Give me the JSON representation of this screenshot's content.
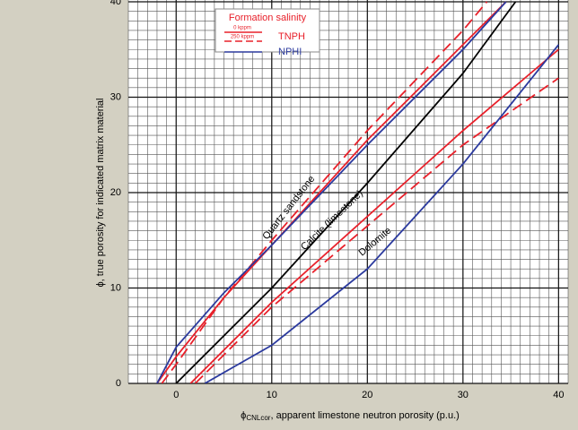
{
  "chart_data": {
    "type": "line",
    "xlabel": {
      "symbol": "ϕ",
      "subscript": "CNLcor",
      "text": ", apparent limestone neutron porosity (p.u.)"
    },
    "ylabel": "ϕ, true porosity for indicated matrix material",
    "xlim": [
      -5,
      41
    ],
    "ylim": [
      0,
      40
    ],
    "xticks": [
      0,
      10,
      20,
      30,
      40
    ],
    "yticks": [
      0,
      10,
      20,
      30,
      40
    ],
    "grid": true,
    "minor_grid_step": 1,
    "curve_labels": [
      "Quartz sandstone",
      "Calcite (limestone)",
      "Dolomite"
    ],
    "legend": {
      "title": "Formation salinity",
      "groups": [
        {
          "name": "TNPH",
          "color": "#e8202a",
          "entries": [
            {
              "label": "0 kppm",
              "style": "solid"
            },
            {
              "label": "250 kppm",
              "style": "dashed"
            }
          ]
        },
        {
          "name": "NPHI",
          "color": "#2b3a9e",
          "entries": [
            {
              "style": "solid"
            }
          ]
        }
      ]
    },
    "series": [
      {
        "color": "#e8202a",
        "style": "solid",
        "x": [
          -2,
          0,
          5,
          10,
          20,
          30,
          34.5
        ],
        "values": [
          0,
          2.8,
          9,
          14.5,
          25.5,
          35.5,
          40
        ]
      },
      {
        "color": "#e8202a",
        "style": "dashed",
        "x": [
          -1.5,
          0,
          5,
          10,
          20,
          30,
          32.5
        ],
        "values": [
          0,
          2,
          9,
          15,
          26.5,
          37,
          40
        ]
      },
      {
        "color": "#2b3a9e",
        "style": "solid",
        "x": [
          -2,
          0,
          5,
          10,
          20,
          30,
          34.5
        ],
        "values": [
          0,
          3.8,
          9.5,
          14.5,
          25,
          35,
          40
        ]
      },
      {
        "color": "#000000",
        "style": "solid",
        "x": [
          0,
          10,
          20,
          30,
          35.5
        ],
        "values": [
          0,
          10,
          21,
          32.5,
          40
        ]
      },
      {
        "color": "#e8202a",
        "style": "solid",
        "x": [
          1.5,
          10,
          20,
          30,
          40
        ],
        "values": [
          0,
          8.5,
          17.5,
          26.5,
          35
        ]
      },
      {
        "color": "#e8202a",
        "style": "dashed",
        "x": [
          2,
          10,
          20,
          30,
          40
        ],
        "values": [
          0,
          8,
          16.5,
          25,
          32
        ]
      },
      {
        "color": "#2b3a9e",
        "style": "solid",
        "x": [
          3,
          10,
          20,
          30,
          40
        ],
        "values": [
          0,
          4,
          12,
          23,
          35.5
        ]
      }
    ]
  }
}
